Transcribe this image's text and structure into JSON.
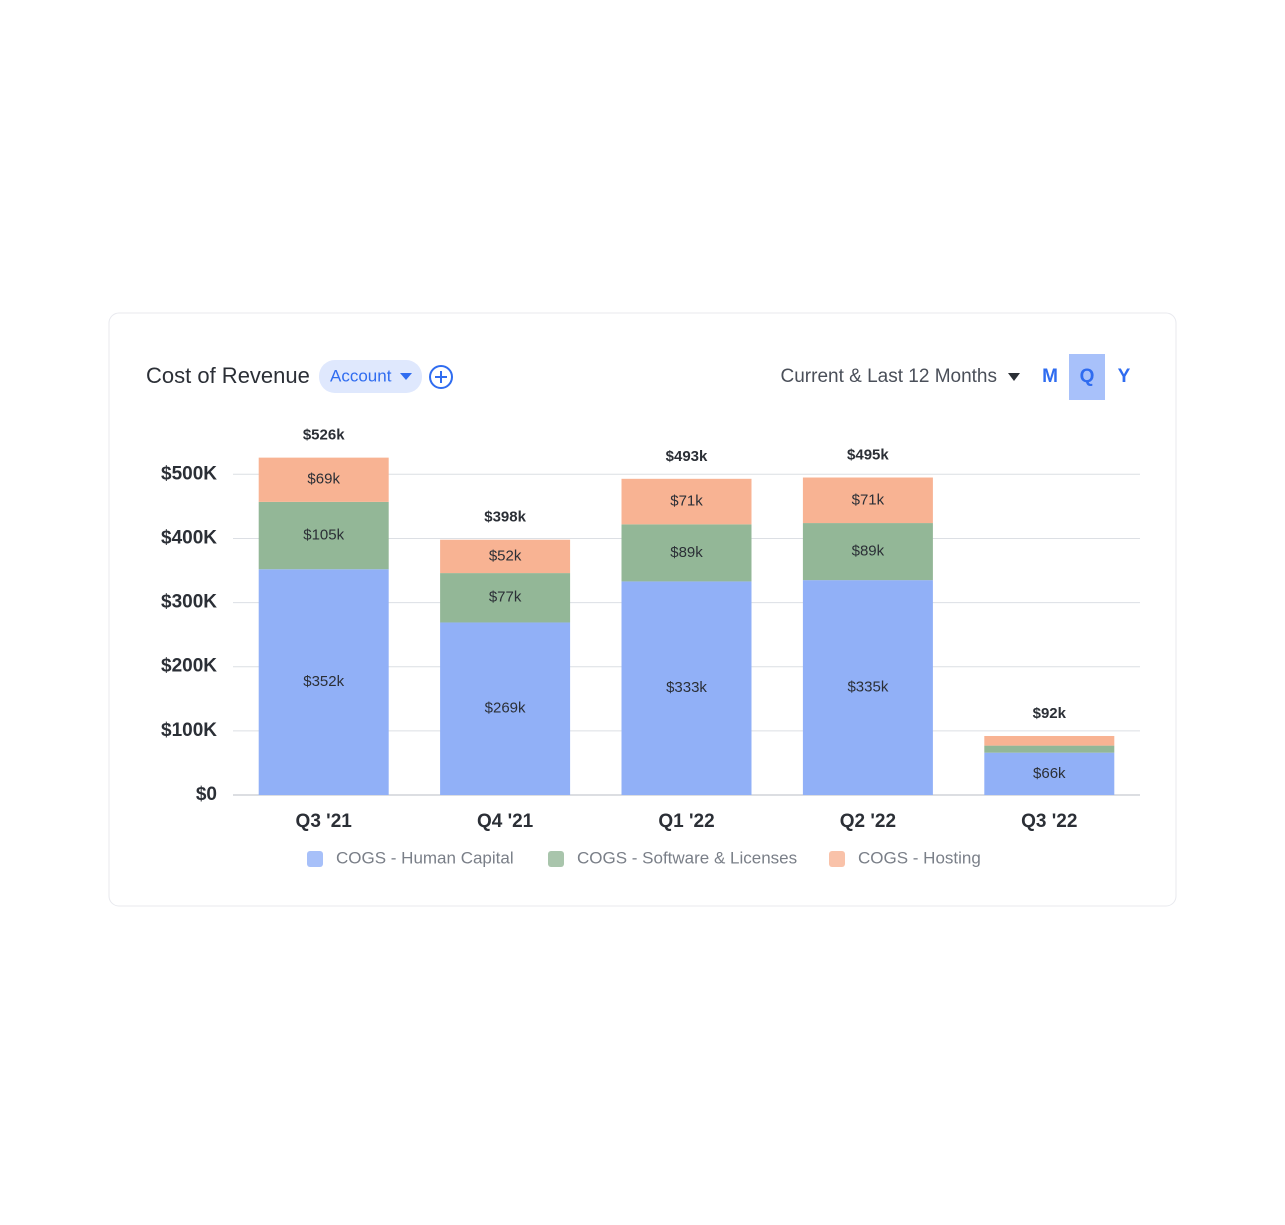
{
  "header": {
    "title": "Cost of Revenue",
    "filter": "Account",
    "period": "Current & Last 12 Months",
    "granularity": [
      "M",
      "Q",
      "Y"
    ],
    "selected": "Q"
  },
  "chart_data": {
    "type": "stacked_bar",
    "categories": [
      "Q3 '21",
      "Q4 '21",
      "Q1 '22",
      "Q2 '22",
      "Q3 '22"
    ],
    "series": [
      {
        "name": "COGS - Human Capital",
        "color": "#91b0f7",
        "values": [
          352000,
          269000,
          333000,
          335000,
          66000
        ],
        "value_labels": [
          "$352k",
          "$269k",
          "$333k",
          "$335k",
          "$66k"
        ]
      },
      {
        "name": "COGS - Software & Licenses",
        "color": "#93b797",
        "values": [
          105000,
          77000,
          89000,
          89000,
          11000
        ],
        "value_labels": [
          "$105k",
          "$77k",
          "$89k",
          "$89k",
          null
        ]
      },
      {
        "name": "COGS - Hosting",
        "color": "#f8b393",
        "values": [
          69000,
          52000,
          71000,
          71000,
          15000
        ],
        "value_labels": [
          "$69k",
          "$52k",
          "$71k",
          "$71k",
          null
        ]
      }
    ],
    "totals": [
      526000,
      398000,
      493000,
      495000,
      92000
    ],
    "total_labels": [
      "$526k",
      "$398k",
      "$493k",
      "$495k",
      "$92k"
    ],
    "ylim": [
      0,
      580000
    ],
    "yticks": [
      {
        "value": 0,
        "label": "$0"
      },
      {
        "value": 100000,
        "label": "$100K"
      },
      {
        "value": 200000,
        "label": "$200K"
      },
      {
        "value": 300000,
        "label": "$300K"
      },
      {
        "value": 400000,
        "label": "$400K"
      },
      {
        "value": 500000,
        "label": "$500K"
      }
    ],
    "grid": true,
    "legend": "bottom"
  }
}
